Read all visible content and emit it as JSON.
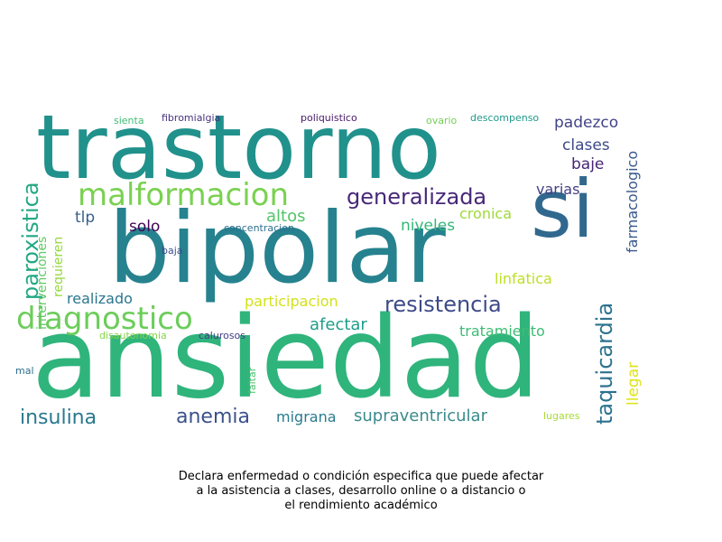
{
  "words": [
    {
      "text": "trastorno",
      "color": "#21918c"
    },
    {
      "text": "ansiedad",
      "color": "#2fb47c"
    },
    {
      "text": "bipolar",
      "color": "#26828e"
    },
    {
      "text": "si",
      "color": "#31688e"
    },
    {
      "text": "malformacion",
      "color": "#7ad151"
    },
    {
      "text": "diagnostico",
      "color": "#6ccd5a"
    },
    {
      "text": "generalizada",
      "color": "#482878"
    },
    {
      "text": "resistencia",
      "color": "#3e4a89"
    },
    {
      "text": "paroxistica",
      "color": "#22a884"
    },
    {
      "text": "taquicardia",
      "color": "#2c728e"
    },
    {
      "text": "insulina",
      "color": "#2a788e"
    },
    {
      "text": "anemia",
      "color": "#3b528b"
    },
    {
      "text": "supraventricular",
      "color": "#3b8a8c"
    },
    {
      "text": "altos",
      "color": "#52c569"
    },
    {
      "text": "niveles",
      "color": "#35b779"
    },
    {
      "text": "cronica",
      "color": "#a0da39"
    },
    {
      "text": "padezco",
      "color": "#414487"
    },
    {
      "text": "clases",
      "color": "#3e4989"
    },
    {
      "text": "baje",
      "color": "#482475"
    },
    {
      "text": "varias",
      "color": "#433e85"
    },
    {
      "text": "farmacologico",
      "color": "#38598c"
    },
    {
      "text": "tlp",
      "color": "#355f8d"
    },
    {
      "text": "solo",
      "color": "#440154"
    },
    {
      "text": "linfatica",
      "color": "#bddf26"
    },
    {
      "text": "participacion",
      "color": "#d2e21b"
    },
    {
      "text": "realizado",
      "color": "#2a768e"
    },
    {
      "text": "afectar",
      "color": "#1f9e89"
    },
    {
      "text": "tratamiento",
      "color": "#3dbc74"
    },
    {
      "text": "migrana",
      "color": "#297b8e"
    },
    {
      "text": "llegar",
      "color": "#dfe318"
    },
    {
      "text": "intervenciones",
      "color": "#5ec962"
    },
    {
      "text": "requieren",
      "color": "#95d840"
    },
    {
      "text": "concentracion",
      "color": "#2d708e"
    },
    {
      "text": "baja",
      "color": "#3c4f8a"
    },
    {
      "text": "disautonomia",
      "color": "#86d549"
    },
    {
      "text": "calurosos",
      "color": "#433d84"
    },
    {
      "text": "mal",
      "color": "#2e6f8e"
    },
    {
      "text": "faltar",
      "color": "#4ac16d"
    },
    {
      "text": "lugares",
      "color": "#a8db34"
    },
    {
      "text": "sienta",
      "color": "#40bd72"
    },
    {
      "text": "fibromialgia",
      "color": "#46337e"
    },
    {
      "text": "poliquistico",
      "color": "#481a6c"
    },
    {
      "text": "ovario",
      "color": "#73d056"
    },
    {
      "text": "descompenso",
      "color": "#1e9b8a"
    }
  ],
  "caption": {
    "lines": [
      "Declara enfermedad o condición especifica que puede afectar",
      "a la asistencia a clases, desarrollo online o a distancio o",
      "el rendimiento académico"
    ]
  }
}
